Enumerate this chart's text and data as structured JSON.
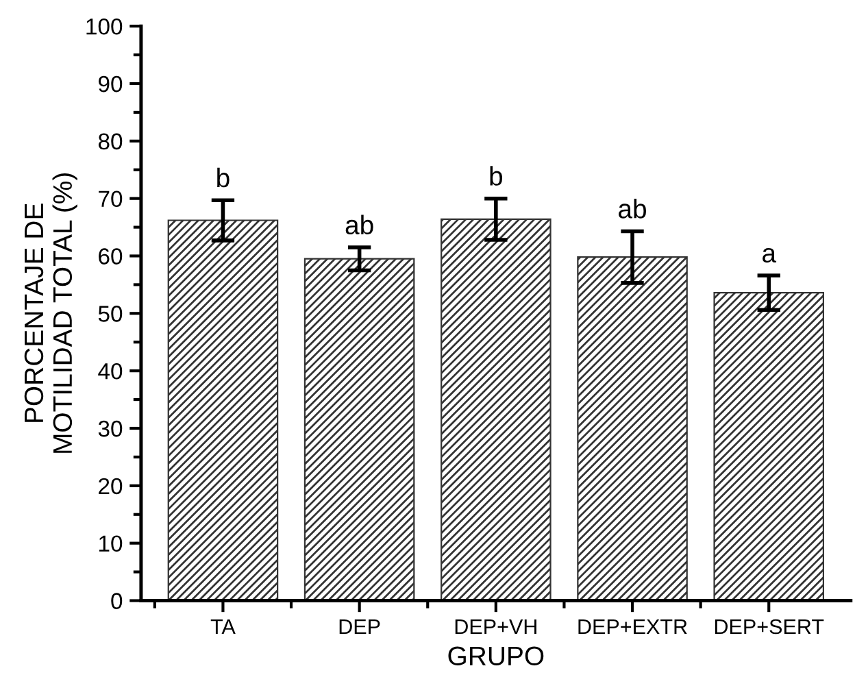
{
  "chart_data": {
    "type": "bar",
    "xlabel": "GRUPO",
    "ylabel": "PORCENTAJE DE\nMOTILIDAD TOTAL (%)",
    "categories": [
      "TA",
      "DEP",
      "DEP+VH",
      "DEP+EXTR",
      "DEP+SERT"
    ],
    "values": [
      66.2,
      59.5,
      66.4,
      59.8,
      53.6
    ],
    "errors": [
      3.5,
      2.0,
      3.6,
      4.5,
      3.0
    ],
    "color": "#333333",
    "ylim": [
      0,
      100
    ],
    "yticks": [
      0,
      10,
      20,
      30,
      40,
      50,
      60,
      70,
      80,
      90,
      100
    ],
    "annotations": [
      {
        "text": "b",
        "x": "TA",
        "y": 69.7
      },
      {
        "text": "ab",
        "x": "DEP",
        "y": 61.5
      },
      {
        "text": "b",
        "x": "DEP+VH",
        "y": 70.0
      },
      {
        "text": "ab",
        "x": "DEP+EXTR",
        "y": 64.3
      },
      {
        "text": "a",
        "x": "DEP+SERT",
        "y": 56.6
      }
    ],
    "grid": false,
    "legend": false
  }
}
